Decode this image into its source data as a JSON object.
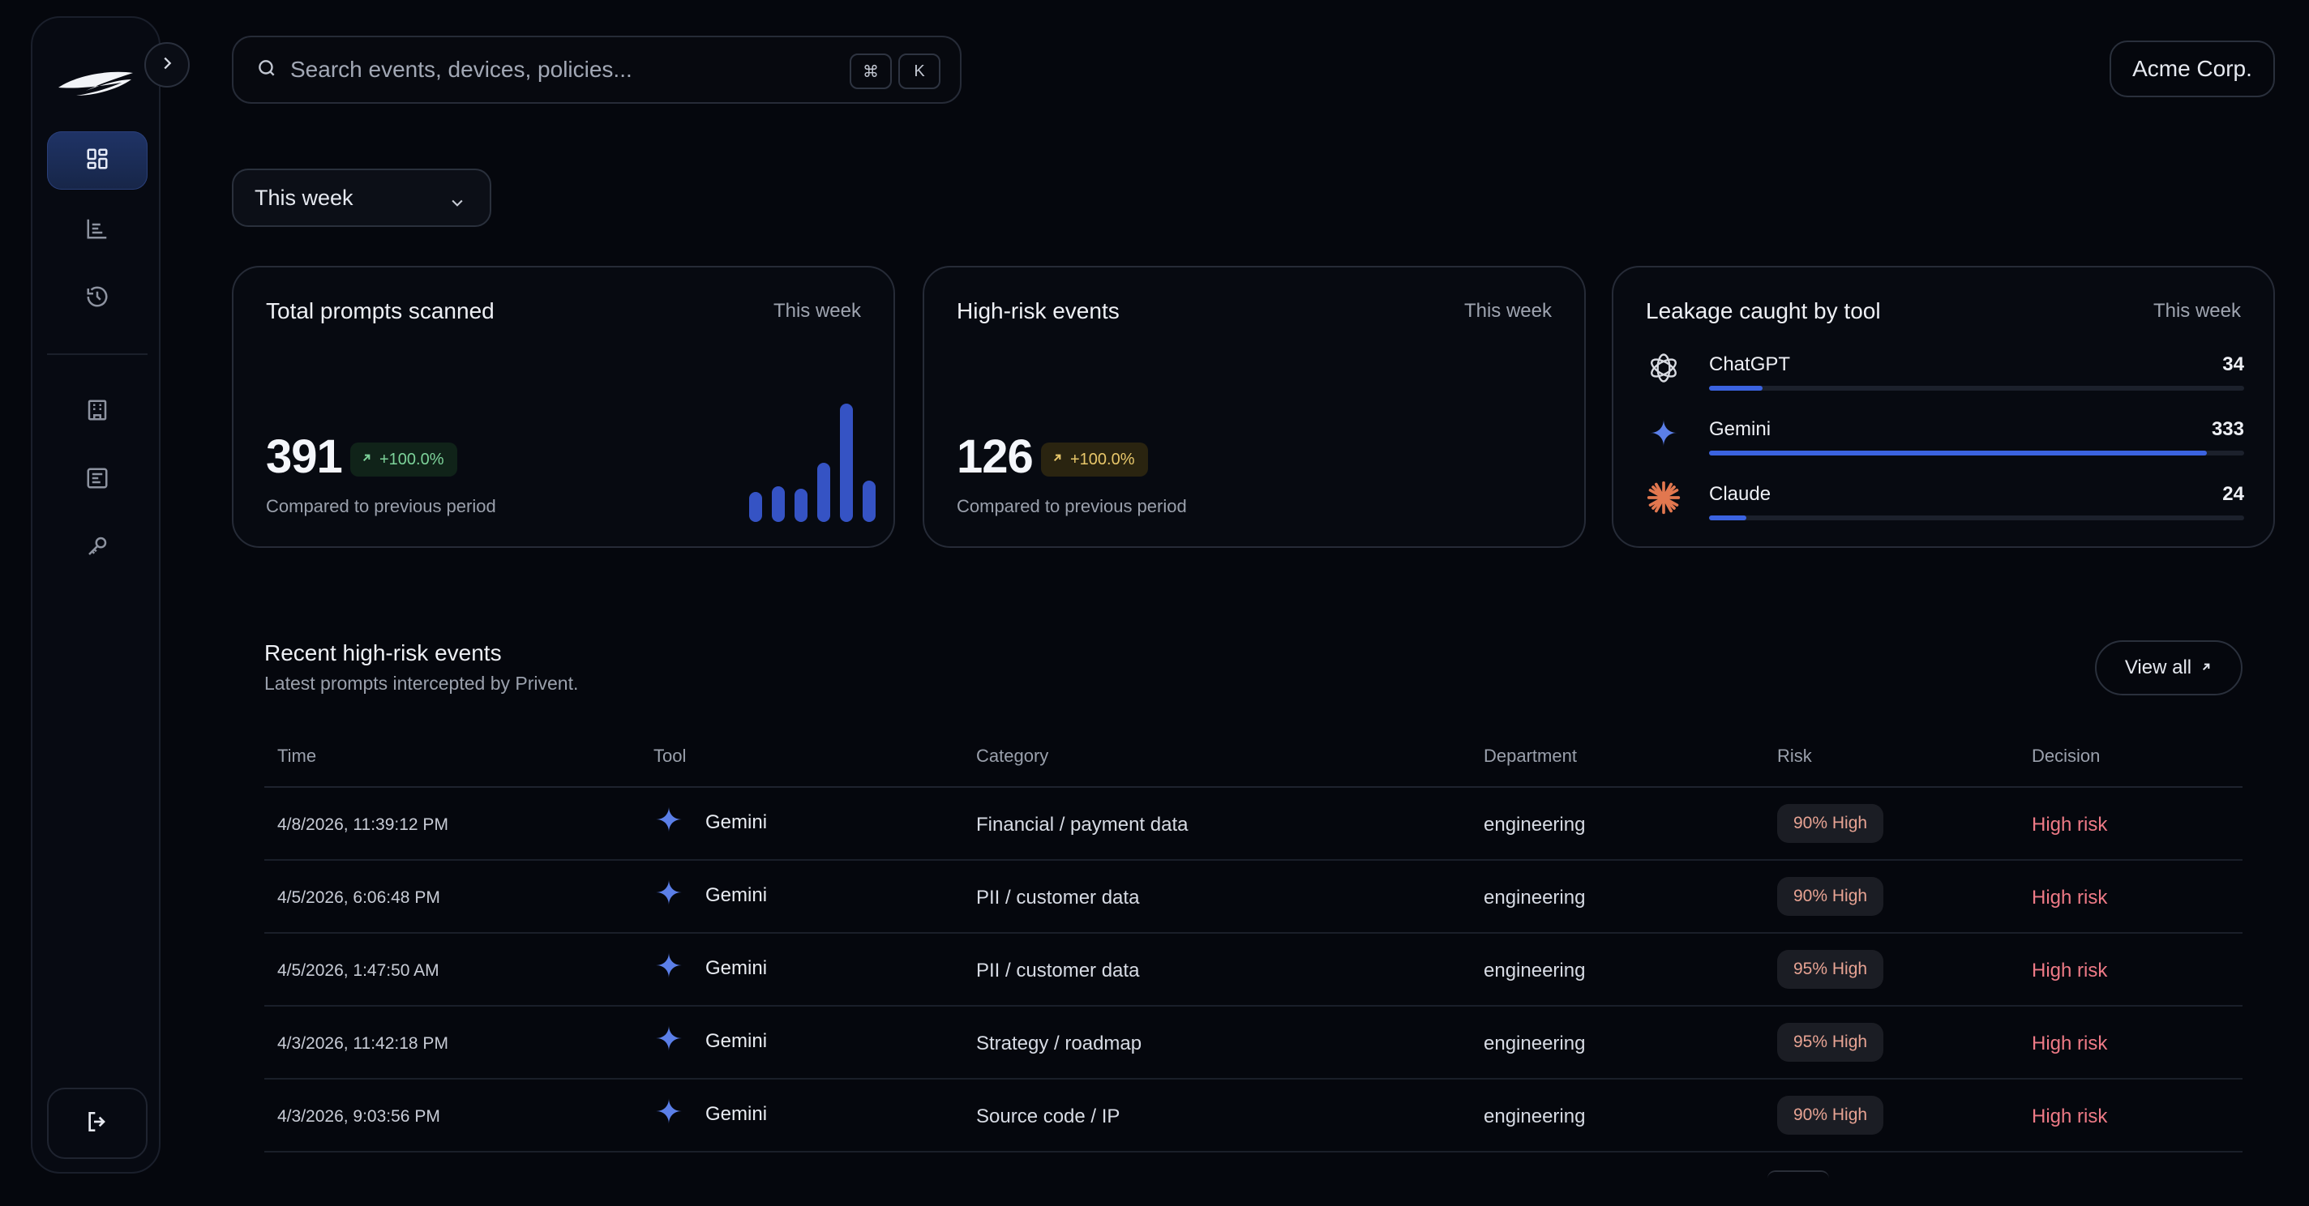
{
  "search": {
    "placeholder": "Search events, devices, policies...",
    "shortcut_mod": "⌘",
    "shortcut_key": "K"
  },
  "org": {
    "name": "Acme Corp."
  },
  "period_select": {
    "value": "This week"
  },
  "sidebar": {
    "items": [
      {
        "icon": "dashboard-grid-icon",
        "active": true
      },
      {
        "icon": "bar-chart-icon",
        "active": false
      },
      {
        "icon": "history-icon",
        "active": false
      },
      {
        "icon": "building-icon",
        "active": false
      },
      {
        "icon": "policy-list-icon",
        "active": false
      },
      {
        "icon": "key-icon",
        "active": false
      }
    ],
    "logout_icon": "logout-icon"
  },
  "cards": {
    "prompts": {
      "title": "Total prompts scanned",
      "period": "This week",
      "value": "391",
      "delta": "+100.0%",
      "subtitle": "Compared to previous period",
      "trend_bars": [
        0.25,
        0.3,
        0.28,
        0.5,
        1.0,
        0.35
      ]
    },
    "highrisk": {
      "title": "High-risk events",
      "period": "This week",
      "value": "126",
      "delta": "+100.0%",
      "subtitle": "Compared to previous period"
    },
    "leakage": {
      "title": "Leakage caught by tool",
      "period": "This week",
      "tools": [
        {
          "name": "ChatGPT",
          "count": "34",
          "icon": "chatgpt-icon",
          "fill": 0.1
        },
        {
          "name": "Gemini",
          "count": "333",
          "icon": "gemini-icon",
          "fill": 0.93
        },
        {
          "name": "Claude",
          "count": "24",
          "icon": "claude-icon",
          "fill": 0.07
        }
      ]
    }
  },
  "recent": {
    "title": "Recent high-risk events",
    "subtitle": "Latest prompts intercepted by Privent.",
    "view_all": "View all",
    "columns": [
      "Time",
      "Tool",
      "Category",
      "Department",
      "Risk",
      "Decision"
    ],
    "rows": [
      {
        "time": "4/8/2026, 11:39:12 PM",
        "tool": "Gemini",
        "category": "Financial / payment data",
        "department": "engineering",
        "risk": "90% High",
        "decision": "High risk"
      },
      {
        "time": "4/5/2026, 6:06:48 PM",
        "tool": "Gemini",
        "category": "PII / customer data",
        "department": "engineering",
        "risk": "90% High",
        "decision": "High risk"
      },
      {
        "time": "4/5/2026, 1:47:50 AM",
        "tool": "Gemini",
        "category": "PII / customer data",
        "department": "engineering",
        "risk": "95% High",
        "decision": "High risk"
      },
      {
        "time": "4/3/2026, 11:42:18 PM",
        "tool": "Gemini",
        "category": "Strategy / roadmap",
        "department": "engineering",
        "risk": "95% High",
        "decision": "High risk"
      },
      {
        "time": "4/3/2026, 9:03:56 PM",
        "tool": "Gemini",
        "category": "Source code / IP",
        "department": "engineering",
        "risk": "90% High",
        "decision": "High risk"
      }
    ]
  },
  "colors": {
    "accent": "#3b63e0",
    "positive": "#7dd39a",
    "warning": "#e8c76a",
    "danger": "#ee7a86",
    "background": "#05070d"
  }
}
